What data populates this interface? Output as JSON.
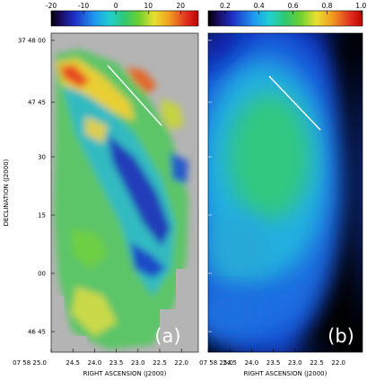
{
  "chart_data": [
    {
      "type": "heatmap",
      "panel": "(a)",
      "xlabel": "RIGHT ASCENSION (J2000)",
      "ylabel": "DECLINATION (J2000)",
      "x_ticks": [
        "07 58 25.0",
        "24.5",
        "24.0",
        "23.5",
        "23.0",
        "22.5",
        "22.0"
      ],
      "y_ticks": [
        "37 48 00",
        "47 45",
        "30",
        "15",
        "00",
        "46 45"
      ],
      "colorbar": {
        "ticks": [
          "-20",
          "-10",
          "0",
          "10",
          "20"
        ],
        "range": [
          -20,
          25
        ],
        "palette": "rainbow"
      },
      "background": "blank (grey)",
      "line_annotation": "white line along ridge",
      "colors": {
        "blank": "#b4b4b4"
      }
    },
    {
      "type": "heatmap",
      "panel": "(b)",
      "xlabel": "RIGHT ASCENSION (J2000)",
      "x_ticks": [
        "07 58 25.0",
        "24.5",
        "24.0",
        "23.5",
        "23.0",
        "22.5",
        "22.0"
      ],
      "colorbar": {
        "ticks": [
          "0.2",
          "0.4",
          "0.6",
          "0.8",
          "1.0"
        ],
        "range": [
          0.1,
          1.0
        ],
        "palette": "rainbow"
      },
      "background": "black",
      "line_annotation": "white line along ridge"
    }
  ]
}
